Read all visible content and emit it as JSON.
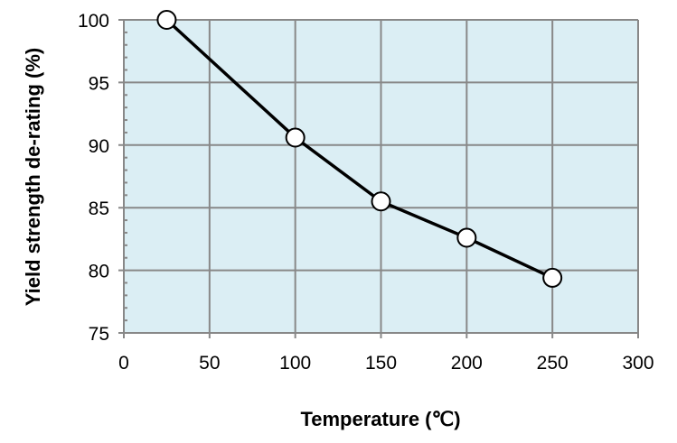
{
  "chart_data": {
    "type": "line",
    "title": "",
    "xlabel": "Temperature (℃)",
    "ylabel": "Yield strength de-rating (%)",
    "xlim": [
      0,
      300
    ],
    "ylim": [
      75,
      100
    ],
    "xticks": [
      0,
      50,
      100,
      150,
      200,
      250,
      300
    ],
    "yticks": [
      75,
      80,
      85,
      90,
      95,
      100
    ],
    "grid": true,
    "legend": "none",
    "colors": {
      "plot_background": "#dbeef4",
      "grid": "#888888",
      "line": "#000000",
      "marker_fill": "#ffffff"
    },
    "series": [
      {
        "x": [
          25,
          100,
          150,
          200,
          250
        ],
        "values": [
          100,
          90.6,
          85.5,
          82.6,
          79.4
        ]
      }
    ]
  }
}
